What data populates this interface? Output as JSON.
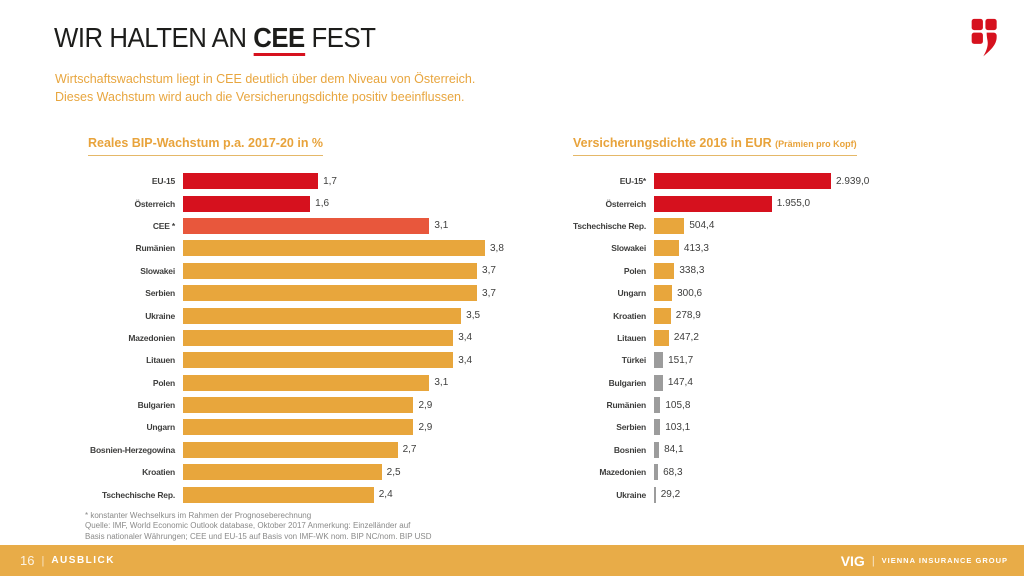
{
  "header": {
    "title_prefix": "WIR HALTEN AN ",
    "title_highlight": "CEE",
    "title_suffix": " FEST",
    "subtitle_line1": "Wirtschaftswachstum liegt in CEE deutlich über dem Niveau von Österreich.",
    "subtitle_line2": "Dieses Wachstum wird auch die Versicherungsdichte positiv beeinflussen."
  },
  "palette": {
    "red": "#d6111e",
    "orange": "#e8573c",
    "gold": "#e8a63c",
    "gray": "#9c9c9c",
    "footer_gold": "#e8ac48",
    "accent_text": "#e8a33b"
  },
  "logo": {
    "name": "vig-shield-logo",
    "color": "#d6111e"
  },
  "chart_data": [
    {
      "type": "bar",
      "orientation": "horizontal",
      "title": "Reales BIP-Wachstum p.a. 2017-20 in %",
      "xlabel": "",
      "ylabel": "",
      "xlim": [
        0,
        3.8
      ],
      "grid": false,
      "legend": false,
      "rows": [
        {
          "label": "EU-15",
          "value": 1.7,
          "display": "1,7",
          "color": "red"
        },
        {
          "label": "Österreich",
          "value": 1.6,
          "display": "1,6",
          "color": "red"
        },
        {
          "label": "CEE *",
          "value": 3.1,
          "display": "3,1",
          "color": "orange"
        },
        {
          "label": "Rumänien",
          "value": 3.8,
          "display": "3,8",
          "color": "gold"
        },
        {
          "label": "Slowakei",
          "value": 3.7,
          "display": "3,7",
          "color": "gold"
        },
        {
          "label": "Serbien",
          "value": 3.7,
          "display": "3,7",
          "color": "gold"
        },
        {
          "label": "Ukraine",
          "value": 3.5,
          "display": "3,5",
          "color": "gold"
        },
        {
          "label": "Mazedonien",
          "value": 3.4,
          "display": "3,4",
          "color": "gold"
        },
        {
          "label": "Litauen",
          "value": 3.4,
          "display": "3,4",
          "color": "gold"
        },
        {
          "label": "Polen",
          "value": 3.1,
          "display": "3,1",
          "color": "gold"
        },
        {
          "label": "Bulgarien",
          "value": 2.9,
          "display": "2,9",
          "color": "gold"
        },
        {
          "label": "Ungarn",
          "value": 2.9,
          "display": "2,9",
          "color": "gold"
        },
        {
          "label": "Bosnien-Herzegowina",
          "value": 2.7,
          "display": "2,7",
          "color": "gold"
        },
        {
          "label": "Kroatien",
          "value": 2.5,
          "display": "2,5",
          "color": "gold"
        },
        {
          "label": "Tschechische Rep.",
          "value": 2.4,
          "display": "2,4",
          "color": "gold"
        }
      ]
    },
    {
      "type": "bar",
      "orientation": "horizontal",
      "title": "Versicherungsdichte 2016 in EUR ",
      "title_note": "(Prämien pro Kopf)",
      "xlabel": "",
      "ylabel": "",
      "xlim": [
        0,
        2939
      ],
      "grid": false,
      "legend": false,
      "rows": [
        {
          "label": "EU-15*",
          "value": 2939.0,
          "display": "2.939,0",
          "color": "red"
        },
        {
          "label": "Österreich",
          "value": 1955.0,
          "display": "1.955,0",
          "color": "red"
        },
        {
          "label": "Tschechische Rep.",
          "value": 504.4,
          "display": "504,4",
          "color": "gold"
        },
        {
          "label": "Slowakei",
          "value": 413.3,
          "display": "413,3",
          "color": "gold"
        },
        {
          "label": "Polen",
          "value": 338.3,
          "display": "338,3",
          "color": "gold"
        },
        {
          "label": "Ungarn",
          "value": 300.6,
          "display": "300,6",
          "color": "gold"
        },
        {
          "label": "Kroatien",
          "value": 278.9,
          "display": "278,9",
          "color": "gold"
        },
        {
          "label": "Litauen",
          "value": 247.2,
          "display": "247,2",
          "color": "gold"
        },
        {
          "label": "Türkei",
          "value": 151.7,
          "display": "151,7",
          "color": "gray"
        },
        {
          "label": "Bulgarien",
          "value": 147.4,
          "display": "147,4",
          "color": "gray"
        },
        {
          "label": "Rumänien",
          "value": 105.8,
          "display": "105,8",
          "color": "gray"
        },
        {
          "label": "Serbien",
          "value": 103.1,
          "display": "103,1",
          "color": "gray"
        },
        {
          "label": "Bosnien",
          "value": 84.1,
          "display": "84,1",
          "color": "gray"
        },
        {
          "label": "Mazedonien",
          "value": 68.3,
          "display": "68,3",
          "color": "gray"
        },
        {
          "label": "Ukraine",
          "value": 29.2,
          "display": "29,2",
          "color": "gray"
        }
      ]
    }
  ],
  "footnote": {
    "lines": [
      "* konstanter Wechselkurs im Rahmen der Prognoseberechnung",
      "Quelle: IMF, World Economic Outlook database, Oktober 2017 Anmerkung: Einzelländer auf",
      "Basis nationaler Währungen; CEE und EU-15 auf Basis von IMF-WK nom. BIP NC/nom. BIP USD"
    ]
  },
  "footer": {
    "page_number": "16",
    "separator": "|",
    "section_label": "AUSBLICK",
    "brand": "VIG",
    "brand_name": "VIENNA INSURANCE GROUP"
  }
}
